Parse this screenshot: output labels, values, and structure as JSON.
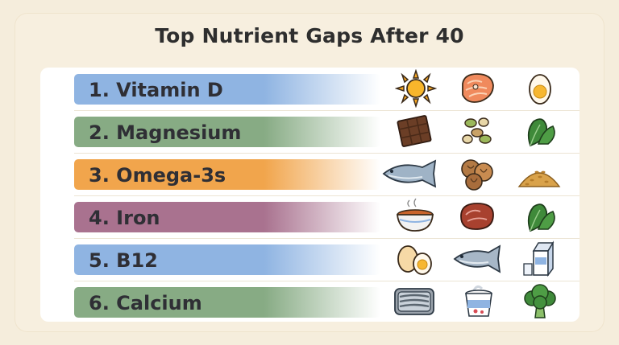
{
  "title": "Top Nutrient Gaps After 40",
  "rows": [
    {
      "label": "1. Vitamin D",
      "color": "#8fb4e2",
      "icons": [
        "sun-icon",
        "salmon-steak-icon",
        "boiled-egg-icon"
      ]
    },
    {
      "label": "2. Magnesium",
      "color": "#87ab84",
      "icons": [
        "chocolate-bar-icon",
        "seeds-icon",
        "spinach-icon"
      ]
    },
    {
      "label": "3. Omega-3s",
      "color": "#f1a54c",
      "icons": [
        "fish-icon",
        "walnuts-icon",
        "flaxseed-pile-icon"
      ]
    },
    {
      "label": "4. Iron",
      "color": "#a9728f",
      "icons": [
        "lentil-bowl-icon",
        "red-meat-icon",
        "spinach-icon"
      ]
    },
    {
      "label": "5. B12",
      "color": "#8fb4e2",
      "icons": [
        "eggs-icon",
        "fish-icon",
        "milk-carton-icon"
      ]
    },
    {
      "label": "6. Calcium",
      "color": "#87ab84",
      "icons": [
        "sardine-tin-icon",
        "yogurt-cup-icon",
        "broccoli-icon"
      ]
    }
  ]
}
